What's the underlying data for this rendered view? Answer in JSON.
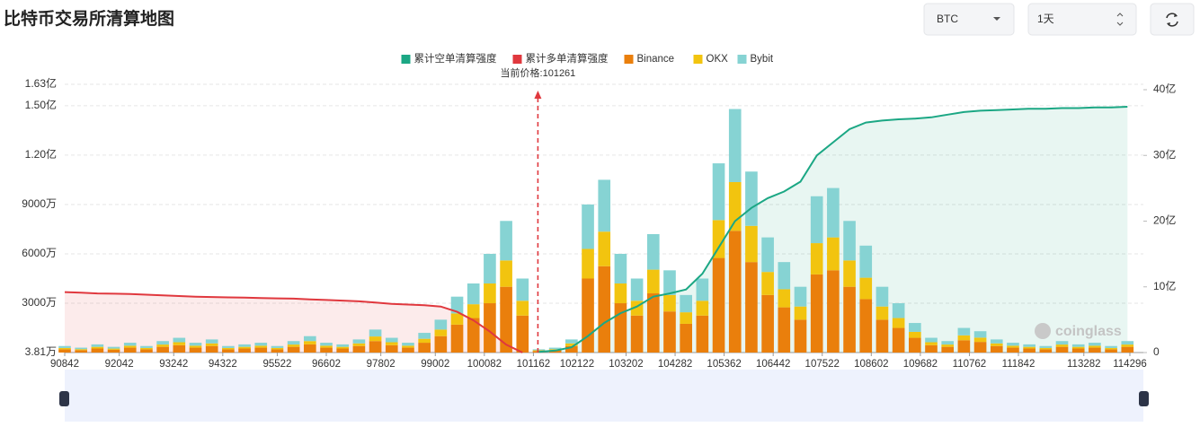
{
  "header": {
    "title": "比特币交易所清算地图",
    "symbol": "BTC",
    "period": "1天"
  },
  "chart_data": {
    "type": "bar",
    "stacked": true,
    "annotation": {
      "label": "当前价格:101261",
      "x": 101261
    },
    "watermark": "coinglass",
    "x": [
      90842,
      91202,
      91562,
      91922,
      92282,
      92642,
      93002,
      93362,
      93722,
      94082,
      94442,
      94802,
      95162,
      95522,
      95882,
      96242,
      96602,
      96962,
      97322,
      97682,
      98042,
      98402,
      98762,
      99122,
      99482,
      99842,
      100202,
      100562,
      100922,
      101282,
      101642,
      102002,
      102362,
      102722,
      103082,
      103442,
      103802,
      104162,
      104522,
      104882,
      105242,
      105602,
      105962,
      106322,
      106682,
      107042,
      107402,
      107762,
      108122,
      108482,
      108842,
      109202,
      109562,
      109922,
      110282,
      110642,
      111002,
      111362,
      111722,
      112082,
      112442,
      112802,
      113162,
      113522,
      113882,
      114242
    ],
    "xlim": [
      90842,
      114296
    ],
    "xticks": [
      90842,
      92042,
      93242,
      94322,
      95522,
      96602,
      97802,
      99002,
      100082,
      101162,
      102122,
      103202,
      104282,
      105362,
      106442,
      107522,
      108602,
      109682,
      110762,
      111842,
      113282,
      114296
    ],
    "ylim": [
      3.81,
      16300
    ],
    "yticks": [
      {
        "value": 3.81,
        "label": "3.81万"
      },
      {
        "value": 3000,
        "label": "3000万"
      },
      {
        "value": 6000,
        "label": "6000万"
      },
      {
        "value": 9000,
        "label": "9000万"
      },
      {
        "value": 12000,
        "label": "1.20亿"
      },
      {
        "value": 15000,
        "label": "1.50亿"
      },
      {
        "value": 16300,
        "label": "1.63亿"
      }
    ],
    "y2lim": [
      0,
      40
    ],
    "y2ticks": [
      0,
      {
        "value": 10,
        "label": "10亿"
      },
      {
        "value": 20,
        "label": "20亿"
      },
      {
        "value": 30,
        "label": "30亿"
      },
      {
        "value": 40,
        "label": "40亿"
      }
    ],
    "grid": true,
    "series": [
      {
        "name": "累计空单清算强度",
        "type": "line",
        "axis": "y2",
        "color": "#1ba784",
        "values": [
          null,
          null,
          null,
          null,
          null,
          null,
          null,
          null,
          null,
          null,
          null,
          null,
          null,
          null,
          null,
          null,
          null,
          null,
          null,
          null,
          null,
          null,
          null,
          null,
          null,
          null,
          null,
          null,
          null,
          0.1,
          0.3,
          0.8,
          2.5,
          4.5,
          6.0,
          7.0,
          8.5,
          9.0,
          9.6,
          12,
          16,
          20,
          22,
          23.5,
          24.5,
          26,
          30,
          32,
          34,
          35,
          35.3,
          35.5,
          35.6,
          35.8,
          36.2,
          36.6,
          36.8,
          36.9,
          37,
          37.1,
          37.1,
          37.2,
          37.2,
          37.3,
          37.3,
          37.4
        ]
      },
      {
        "name": "累计多单清算强度",
        "type": "line",
        "axis": "y2",
        "color": "#e0383e",
        "values": [
          9.2,
          9.1,
          9.0,
          8.95,
          8.9,
          8.8,
          8.7,
          8.6,
          8.5,
          8.45,
          8.4,
          8.35,
          8.3,
          8.25,
          8.2,
          8.1,
          8.0,
          7.9,
          7.8,
          7.6,
          7.4,
          7.3,
          7.2,
          7.0,
          6.2,
          4.9,
          3.2,
          1.2,
          0,
          null,
          null,
          null,
          null,
          null,
          null,
          null,
          null,
          null,
          null,
          null,
          null,
          null,
          null,
          null,
          null,
          null,
          null,
          null,
          null,
          null,
          null,
          null,
          null,
          null,
          null,
          null,
          null,
          null,
          null,
          null,
          null,
          null,
          null,
          null,
          null,
          null
        ]
      },
      {
        "name": "Binance",
        "type": "bar",
        "color": "#ea7f0c",
        "values": [
          200,
          150,
          250,
          175,
          300,
          200,
          350,
          450,
          300,
          400,
          200,
          250,
          300,
          200,
          350,
          500,
          300,
          250,
          400,
          700,
          450,
          300,
          600,
          1000,
          1700,
          2100,
          3000,
          4000,
          2250,
          100,
          150,
          400,
          4500,
          5250,
          3000,
          2250,
          3600,
          2500,
          1750,
          2250,
          5750,
          7400,
          5500,
          3500,
          2750,
          2000,
          4750,
          5000,
          4000,
          3250,
          2000,
          1500,
          900,
          450,
          350,
          750,
          650,
          400,
          300,
          250,
          200,
          350,
          250,
          300,
          200,
          350
        ]
      },
      {
        "name": "OKX",
        "type": "bar",
        "color": "#f2c40f",
        "values": [
          80,
          60,
          100,
          70,
          120,
          80,
          140,
          180,
          120,
          160,
          80,
          100,
          120,
          80,
          140,
          200,
          120,
          100,
          160,
          280,
          180,
          120,
          240,
          400,
          680,
          840,
          1200,
          1600,
          900,
          40,
          60,
          160,
          1800,
          2100,
          1200,
          900,
          1440,
          1000,
          700,
          900,
          2300,
          2960,
          2200,
          1400,
          1100,
          800,
          1900,
          2000,
          1600,
          1300,
          800,
          600,
          360,
          180,
          140,
          300,
          260,
          160,
          120,
          100,
          80,
          140,
          100,
          120,
          80,
          140
        ]
      },
      {
        "name": "Bybit",
        "type": "bar",
        "color": "#86d3d3",
        "values": [
          120,
          90,
          150,
          105,
          180,
          120,
          210,
          270,
          180,
          240,
          120,
          150,
          180,
          120,
          210,
          300,
          180,
          150,
          240,
          420,
          270,
          180,
          360,
          600,
          1020,
          1260,
          1800,
          2400,
          1350,
          60,
          90,
          240,
          2700,
          3150,
          1800,
          1350,
          2160,
          1500,
          1050,
          1350,
          3450,
          4440,
          3300,
          2100,
          1650,
          1200,
          2850,
          3000,
          2400,
          1950,
          1200,
          900,
          540,
          270,
          210,
          450,
          390,
          240,
          180,
          150,
          120,
          210,
          150,
          180,
          120,
          210
        ]
      }
    ]
  }
}
